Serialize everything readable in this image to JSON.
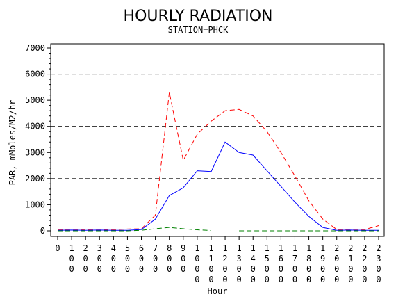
{
  "chart_data": {
    "type": "line",
    "title": "HOURLY RADIATION",
    "subtitle": "STATION=PHCK",
    "xlabel": "Hour",
    "ylabel": "PAR, mMoles/M2/hr",
    "ylim": [
      0,
      7000
    ],
    "yticks": [
      "0",
      "1000",
      "2000",
      "3000",
      "4000",
      "5000",
      "6000",
      "7000"
    ],
    "reference_lines": [
      2000,
      4000,
      6000
    ],
    "x": [
      0,
      100,
      200,
      300,
      400,
      500,
      600,
      700,
      800,
      900,
      1000,
      1100,
      1200,
      1300,
      1400,
      1500,
      1600,
      1700,
      1800,
      1900,
      2000,
      2100,
      2200,
      2300
    ],
    "xtick_labels": [
      "0",
      "100",
      "200",
      "300",
      "400",
      "500",
      "600",
      "700",
      "800",
      "900",
      "1000",
      "1100",
      "1200",
      "1300",
      "1400",
      "1500",
      "1600",
      "1700",
      "1800",
      "1900",
      "2000",
      "2100",
      "2200",
      "2300"
    ],
    "series": [
      {
        "color": "#ff0000",
        "dash": "dashed",
        "values": [
          50,
          60,
          50,
          60,
          50,
          70,
          80,
          600,
          5300,
          2700,
          3700,
          4200,
          4600,
          4650,
          4400,
          3800,
          3000,
          2100,
          1150,
          450,
          50,
          60,
          50,
          200
        ]
      },
      {
        "color": "#0000ff",
        "dash": "solid",
        "values": [
          20,
          30,
          20,
          30,
          20,
          20,
          50,
          450,
          1350,
          1650,
          2300,
          2270,
          3400,
          3000,
          2900,
          2300,
          1700,
          1100,
          550,
          130,
          20,
          30,
          20,
          20
        ]
      },
      {
        "color": "#008000",
        "dash": "dashed",
        "values": [
          0,
          0,
          0,
          0,
          0,
          0,
          20,
          80,
          130,
          80,
          40,
          10,
          null,
          0,
          0,
          0,
          0,
          0,
          0,
          0,
          0,
          0,
          0,
          0
        ]
      }
    ]
  }
}
